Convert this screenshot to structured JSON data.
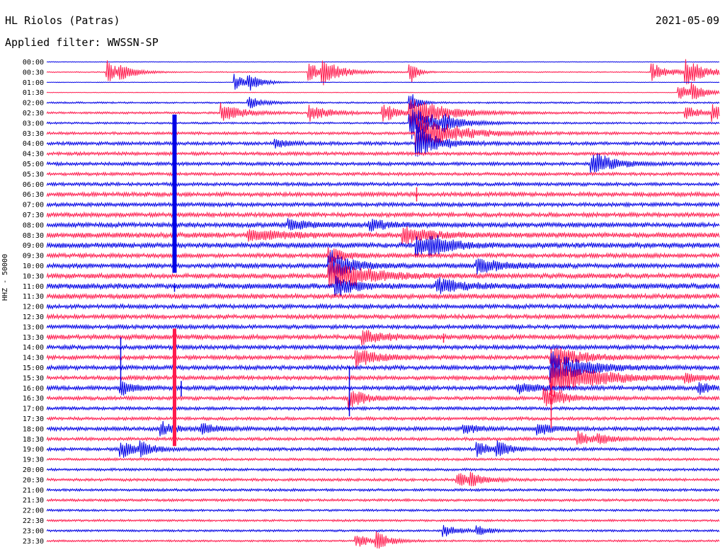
{
  "header": {
    "station": "HL Riolos (Patras)",
    "date": "2021-05-09",
    "filter": "Applied filter: WWSSN-SP"
  },
  "chart_data": {
    "type": "line",
    "title": "HL Riolos (Patras)",
    "ylabel": "HHZ - 50000",
    "colors": [
      "#0000e6",
      "#ff1a4d"
    ],
    "rows": [
      "00:00",
      "00:30",
      "01:00",
      "01:30",
      "02:00",
      "02:30",
      "03:00",
      "03:30",
      "04:00",
      "04:30",
      "05:00",
      "05:30",
      "06:00",
      "06:30",
      "07:00",
      "07:30",
      "08:00",
      "08:30",
      "09:00",
      "09:30",
      "10:00",
      "10:30",
      "11:00",
      "11:30",
      "12:00",
      "12:30",
      "13:00",
      "13:30",
      "14:00",
      "14:30",
      "15:00",
      "15:30",
      "16:00",
      "16:30",
      "17:00",
      "17:30",
      "18:00",
      "18:30",
      "19:00",
      "19:30",
      "20:00",
      "20:30",
      "21:00",
      "21:30",
      "22:00",
      "22:30",
      "23:00",
      "23:30"
    ],
    "noise": [
      0.3,
      0.5,
      0.3,
      0.3,
      0.8,
      1.0,
      0.9,
      1.3,
      1.6,
      1.6,
      1.6,
      1.5,
      1.6,
      2.0,
      1.8,
      2.0,
      2.2,
      2.4,
      2.4,
      2.0,
      2.2,
      2.3,
      2.6,
      2.3,
      2.0,
      2.0,
      1.9,
      2.2,
      2.0,
      1.9,
      2.0,
      1.9,
      2.0,
      1.7,
      1.5,
      1.5,
      1.8,
      1.5,
      1.5,
      1.2,
      1.2,
      1.3,
      1.2,
      1.2,
      1.0,
      1.0,
      1.0,
      0.9
    ],
    "events": [
      {
        "row": 1,
        "t": 0.09,
        "amp": 18,
        "dur": 0.02
      },
      {
        "row": 1,
        "t": 0.11,
        "amp": 9,
        "dur": 0.02
      },
      {
        "row": 1,
        "t": 0.39,
        "amp": 14,
        "dur": 0.02
      },
      {
        "row": 1,
        "t": 0.41,
        "amp": 16,
        "dur": 0.03
      },
      {
        "row": 1,
        "t": 0.54,
        "amp": 18,
        "dur": 0.01
      },
      {
        "row": 1,
        "t": 0.9,
        "amp": 12,
        "dur": 0.03
      },
      {
        "row": 1,
        "t": 0.95,
        "amp": 18,
        "dur": 0.03
      },
      {
        "row": 2,
        "t": 0.28,
        "amp": 12,
        "dur": 0.02
      },
      {
        "row": 2,
        "t": 0.3,
        "amp": 9,
        "dur": 0.02
      },
      {
        "row": 3,
        "t": 0.94,
        "amp": 12,
        "dur": 0.02
      },
      {
        "row": 3,
        "t": 0.96,
        "amp": 10,
        "dur": 0.02
      },
      {
        "row": 4,
        "t": 0.3,
        "amp": 10,
        "dur": 0.02
      },
      {
        "row": 4,
        "t": 0.54,
        "amp": 20,
        "dur": 0.01
      },
      {
        "row": 5,
        "t": 0.26,
        "amp": 14,
        "dur": 0.03
      },
      {
        "row": 5,
        "t": 0.39,
        "amp": 12,
        "dur": 0.03
      },
      {
        "row": 5,
        "t": 0.5,
        "amp": 15,
        "dur": 0.02
      },
      {
        "row": 5,
        "t": 0.54,
        "amp": 24,
        "dur": 0.05
      },
      {
        "row": 5,
        "t": 0.95,
        "amp": 11,
        "dur": 0.02
      },
      {
        "row": 5,
        "t": 0.99,
        "amp": 11,
        "dur": 0.02
      },
      {
        "row": 6,
        "t": 0.54,
        "amp": 26,
        "dur": 0.04
      },
      {
        "row": 6,
        "t": 0.59,
        "amp": 7,
        "dur": 0.02
      },
      {
        "row": 7,
        "t": 0.55,
        "amp": 30,
        "dur": 0.05
      },
      {
        "row": 8,
        "t": 0.34,
        "amp": 6,
        "dur": 0.02
      },
      {
        "row": 8,
        "t": 0.55,
        "amp": 25,
        "dur": 0.03
      },
      {
        "row": 10,
        "t": 0.81,
        "amp": 18,
        "dur": 0.03
      },
      {
        "row": 16,
        "t": 0.36,
        "amp": 8,
        "dur": 0.03
      },
      {
        "row": 16,
        "t": 0.48,
        "amp": 8,
        "dur": 0.03
      },
      {
        "row": 17,
        "t": 0.3,
        "amp": 8,
        "dur": 0.05
      },
      {
        "row": 17,
        "t": 0.53,
        "amp": 12,
        "dur": 0.04
      },
      {
        "row": 18,
        "t": 0.55,
        "amp": 15,
        "dur": 0.03
      },
      {
        "row": 18,
        "t": 0.57,
        "amp": 10,
        "dur": 0.03
      },
      {
        "row": 19,
        "t": 0.42,
        "amp": 14,
        "dur": 0.02
      },
      {
        "row": 20,
        "t": 0.42,
        "amp": 24,
        "dur": 0.03
      },
      {
        "row": 20,
        "t": 0.64,
        "amp": 10,
        "dur": 0.04
      },
      {
        "row": 21,
        "t": 0.42,
        "amp": 26,
        "dur": 0.05
      },
      {
        "row": 22,
        "t": 0.43,
        "amp": 14,
        "dur": 0.03
      },
      {
        "row": 22,
        "t": 0.58,
        "amp": 10,
        "dur": 0.04
      },
      {
        "row": 27,
        "t": 0.47,
        "amp": 10,
        "dur": 0.03
      },
      {
        "row": 29,
        "t": 0.46,
        "amp": 14,
        "dur": 0.03
      },
      {
        "row": 29,
        "t": 0.75,
        "amp": 18,
        "dur": 0.04
      },
      {
        "row": 30,
        "t": 0.75,
        "amp": 22,
        "dur": 0.05
      },
      {
        "row": 31,
        "t": 0.75,
        "amp": 28,
        "dur": 0.06
      },
      {
        "row": 31,
        "t": 0.95,
        "amp": 8,
        "dur": 0.02
      },
      {
        "row": 32,
        "t": 0.11,
        "amp": 10,
        "dur": 0.02
      },
      {
        "row": 32,
        "t": 0.7,
        "amp": 8,
        "dur": 0.03
      },
      {
        "row": 32,
        "t": 0.97,
        "amp": 8,
        "dur": 0.02
      },
      {
        "row": 33,
        "t": 0.45,
        "amp": 18,
        "dur": 0.02
      },
      {
        "row": 33,
        "t": 0.74,
        "amp": 14,
        "dur": 0.03
      },
      {
        "row": 36,
        "t": 0.17,
        "amp": 10,
        "dur": 0.02
      },
      {
        "row": 36,
        "t": 0.23,
        "amp": 9,
        "dur": 0.02
      },
      {
        "row": 36,
        "t": 0.62,
        "amp": 8,
        "dur": 0.02
      },
      {
        "row": 36,
        "t": 0.73,
        "amp": 10,
        "dur": 0.02
      },
      {
        "row": 37,
        "t": 0.79,
        "amp": 10,
        "dur": 0.02
      },
      {
        "row": 37,
        "t": 0.82,
        "amp": 7,
        "dur": 0.02
      },
      {
        "row": 38,
        "t": 0.11,
        "amp": 14,
        "dur": 0.02
      },
      {
        "row": 38,
        "t": 0.14,
        "amp": 9,
        "dur": 0.02
      },
      {
        "row": 38,
        "t": 0.64,
        "amp": 11,
        "dur": 0.02
      },
      {
        "row": 38,
        "t": 0.67,
        "amp": 10,
        "dur": 0.02
      },
      {
        "row": 41,
        "t": 0.61,
        "amp": 10,
        "dur": 0.02
      },
      {
        "row": 41,
        "t": 0.63,
        "amp": 9,
        "dur": 0.02
      },
      {
        "row": 46,
        "t": 0.59,
        "amp": 10,
        "dur": 0.02
      },
      {
        "row": 46,
        "t": 0.64,
        "amp": 7,
        "dur": 0.02
      },
      {
        "row": 47,
        "t": 0.46,
        "amp": 10,
        "dur": 0.02
      },
      {
        "row": 47,
        "t": 0.49,
        "amp": 12,
        "dur": 0.02
      }
    ],
    "blocks": [
      {
        "row_from": 6,
        "row_to": 20,
        "t": 0.19,
        "amp": 6,
        "color": 0
      },
      {
        "row_from": 27,
        "row_to": 37,
        "t": 0.19,
        "amp": 5,
        "color": 1
      }
    ],
    "spikes": [
      {
        "row": 22,
        "t": 0.19,
        "up": 4,
        "down": 8
      },
      {
        "row": 13,
        "t": 0.55,
        "up": 10,
        "down": 10
      },
      {
        "row": 28,
        "t": 0.11,
        "up": 14,
        "down": 60
      },
      {
        "row": 32,
        "t": 0.45,
        "up": 30,
        "down": 40
      },
      {
        "row": 33,
        "t": 0.75,
        "up": 30,
        "down": 42
      },
      {
        "row": 27,
        "t": 0.59,
        "up": 5,
        "down": 8
      },
      {
        "row": 32,
        "t": 0.2,
        "up": 10,
        "down": 12
      }
    ]
  }
}
